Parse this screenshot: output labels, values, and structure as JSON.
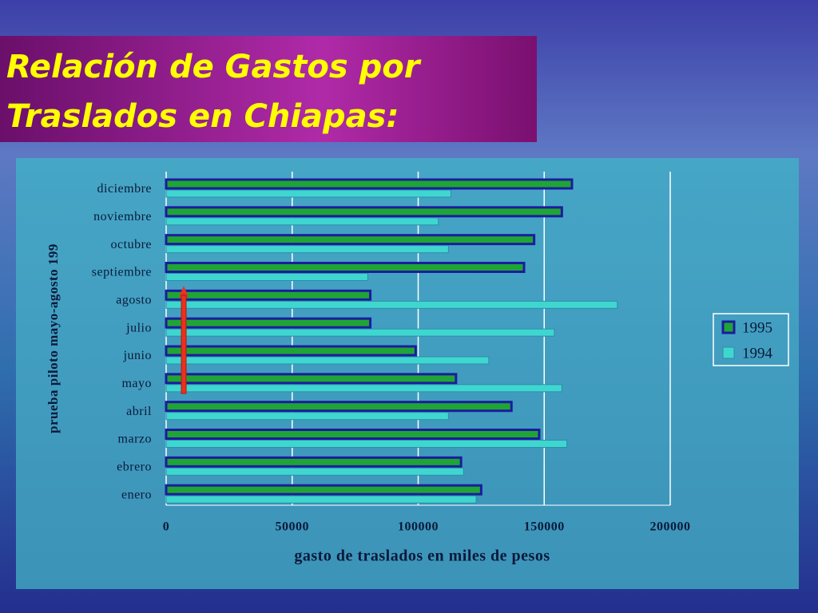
{
  "chart_data": {
    "type": "bar",
    "orientation": "horizontal",
    "title_lines": [
      "Relación de Gastos por",
      "Traslados en Chiapas:"
    ],
    "xlabel": "gasto de traslados en miles de pesos",
    "ylabel": "prueba piloto mayo-agosto 199",
    "categories": [
      "enero",
      "ebrero",
      "marzo",
      "abril",
      "mayo",
      "junio",
      "julio",
      "agosto",
      "septiembre",
      "octubre",
      "noviembre",
      "diciembre"
    ],
    "series": [
      {
        "name": "1995",
        "color": "#1fa535",
        "values": [
          125000,
          117000,
          148000,
          137000,
          115000,
          99000,
          81000,
          81000,
          142000,
          146000,
          157000,
          161000
        ]
      },
      {
        "name": "1994",
        "color": "#3fd6d0",
        "values": [
          123000,
          118000,
          159000,
          112000,
          157000,
          128000,
          154000,
          179000,
          80000,
          112000,
          108000,
          113000
        ]
      }
    ],
    "xlim": [
      0,
      200000
    ],
    "xticks": [
      0,
      50000,
      100000,
      150000,
      200000
    ],
    "grid": true,
    "legend": "right"
  }
}
